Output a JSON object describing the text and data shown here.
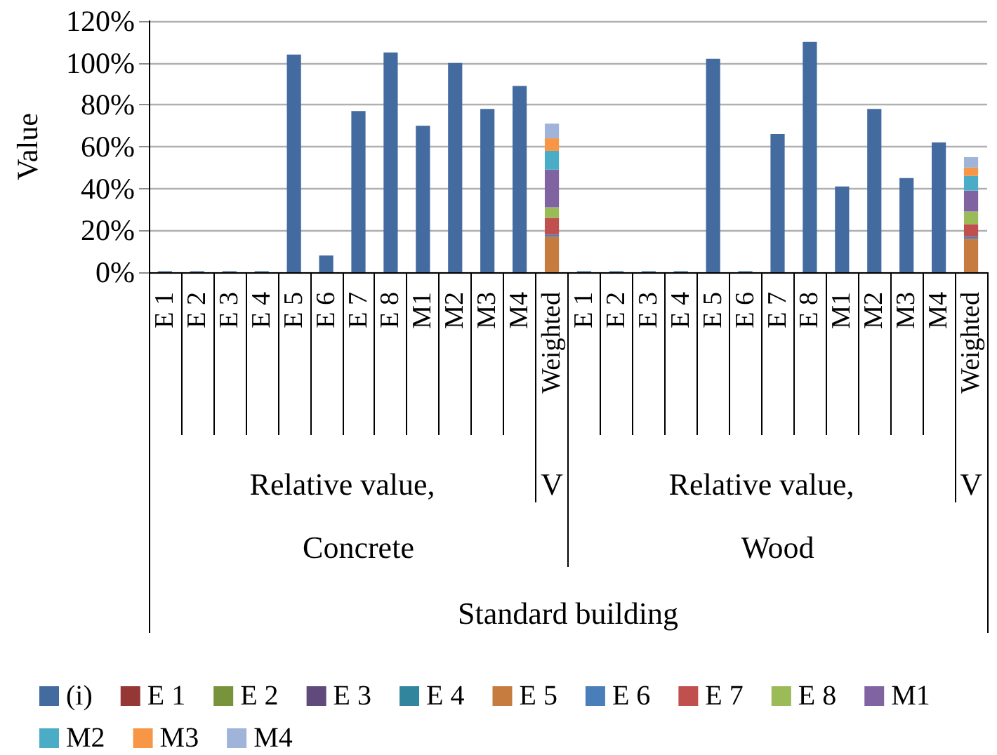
{
  "chart_data": {
    "type": "bar",
    "ylabel": "Value",
    "categories": [
      "E 1",
      "E 2",
      "E 3",
      "E 4",
      "E 5",
      "E 6",
      "E 7",
      "E 8",
      "M1",
      "M2",
      "M3",
      "M4",
      "Weighted",
      "E 1",
      "E 2",
      "E 3",
      "E 4",
      "E 5",
      "E 6",
      "E 7",
      "E 8",
      "M1",
      "M2",
      "M3",
      "M4",
      "Weighted"
    ],
    "annotations": [
      "Relative value,",
      "V",
      "Relative value,",
      "V",
      "Concrete",
      "Wood",
      "Standard building"
    ],
    "series": [
      {
        "name": "(i)",
        "color": "#436ba0",
        "values": [
          0.5,
          0.5,
          0.5,
          0.5,
          104,
          8,
          77,
          105,
          70,
          100,
          78,
          89,
          null,
          0.5,
          0.5,
          0.5,
          0.5,
          102,
          0.5,
          66,
          110,
          41,
          78,
          45,
          62,
          null
        ]
      },
      {
        "name": "E 1",
        "color": "#953735",
        "values": [
          null,
          null,
          null,
          null,
          null,
          null,
          null,
          null,
          null,
          null,
          null,
          null,
          0,
          null,
          null,
          null,
          null,
          null,
          null,
          null,
          null,
          null,
          null,
          null,
          null,
          0
        ]
      },
      {
        "name": "E 2",
        "color": "#77933c",
        "values": [
          null,
          null,
          null,
          null,
          null,
          null,
          null,
          null,
          null,
          null,
          null,
          null,
          0,
          null,
          null,
          null,
          null,
          null,
          null,
          null,
          null,
          null,
          null,
          null,
          null,
          0
        ]
      },
      {
        "name": "E 3",
        "color": "#604a7b",
        "values": [
          null,
          null,
          null,
          null,
          null,
          null,
          null,
          null,
          null,
          null,
          null,
          null,
          0,
          null,
          null,
          null,
          null,
          null,
          null,
          null,
          null,
          null,
          null,
          null,
          null,
          0
        ]
      },
      {
        "name": "E 4",
        "color": "#31859c",
        "values": [
          null,
          null,
          null,
          null,
          null,
          null,
          null,
          null,
          null,
          null,
          null,
          null,
          0,
          null,
          null,
          null,
          null,
          null,
          null,
          null,
          null,
          null,
          null,
          null,
          null,
          0
        ]
      },
      {
        "name": "E 5",
        "color": "#c77c3f",
        "values": [
          null,
          null,
          null,
          null,
          null,
          null,
          null,
          null,
          null,
          null,
          null,
          null,
          17,
          null,
          null,
          null,
          null,
          null,
          null,
          null,
          null,
          null,
          null,
          null,
          null,
          16
        ]
      },
      {
        "name": "E 6",
        "color": "#4a7ebb",
        "values": [
          null,
          null,
          null,
          null,
          null,
          null,
          null,
          null,
          null,
          null,
          null,
          null,
          1,
          null,
          null,
          null,
          null,
          null,
          null,
          null,
          null,
          null,
          null,
          null,
          null,
          1
        ]
      },
      {
        "name": "E 7",
        "color": "#c0504d",
        "values": [
          null,
          null,
          null,
          null,
          null,
          null,
          null,
          null,
          null,
          null,
          null,
          null,
          8,
          null,
          null,
          null,
          null,
          null,
          null,
          null,
          null,
          null,
          null,
          null,
          null,
          6
        ]
      },
      {
        "name": "E 8",
        "color": "#9bbb59",
        "values": [
          null,
          null,
          null,
          null,
          null,
          null,
          null,
          null,
          null,
          null,
          null,
          null,
          5,
          null,
          null,
          null,
          null,
          null,
          null,
          null,
          null,
          null,
          null,
          null,
          null,
          6
        ]
      },
      {
        "name": "M1",
        "color": "#8064a2",
        "values": [
          null,
          null,
          null,
          null,
          null,
          null,
          null,
          null,
          null,
          null,
          null,
          null,
          18,
          null,
          null,
          null,
          null,
          null,
          null,
          null,
          null,
          null,
          null,
          null,
          null,
          10
        ]
      },
      {
        "name": "M2",
        "color": "#4bacc6",
        "values": [
          null,
          null,
          null,
          null,
          null,
          null,
          null,
          null,
          null,
          null,
          null,
          null,
          9,
          null,
          null,
          null,
          null,
          null,
          null,
          null,
          null,
          null,
          null,
          null,
          null,
          7
        ]
      },
      {
        "name": "M3",
        "color": "#f79646",
        "values": [
          null,
          null,
          null,
          null,
          null,
          null,
          null,
          null,
          null,
          null,
          null,
          null,
          6,
          null,
          null,
          null,
          null,
          null,
          null,
          null,
          null,
          null,
          null,
          null,
          null,
          4
        ]
      },
      {
        "name": "M4",
        "color": "#9fb4d8",
        "values": [
          null,
          null,
          null,
          null,
          null,
          null,
          null,
          null,
          null,
          null,
          null,
          null,
          7,
          null,
          null,
          null,
          null,
          null,
          null,
          null,
          null,
          null,
          null,
          null,
          null,
          5
        ]
      }
    ],
    "stacked": true,
    "ylim": [
      0,
      120
    ],
    "yticks": [
      {
        "value": 0,
        "label": "0%"
      },
      {
        "value": 20,
        "label": "20%"
      },
      {
        "value": 40,
        "label": "40%"
      },
      {
        "value": 60,
        "label": "60%"
      },
      {
        "value": 80,
        "label": "80%"
      },
      {
        "value": 100,
        "label": "100%"
      },
      {
        "value": 120,
        "label": "120%"
      }
    ],
    "grid": "y",
    "legend": "bottom"
  }
}
